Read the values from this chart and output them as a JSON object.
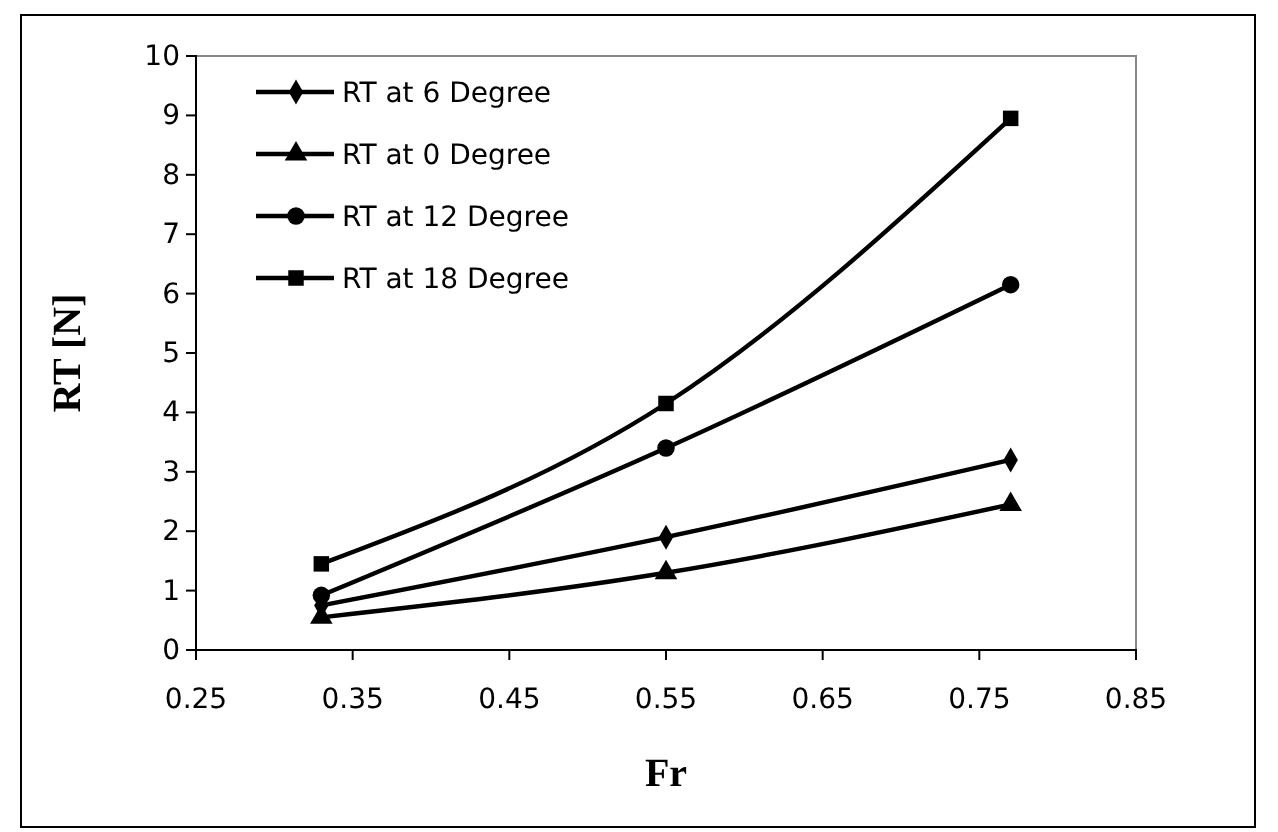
{
  "chart_data": {
    "type": "line",
    "xlabel": "Fr",
    "ylabel": "RT [N]",
    "xlim": [
      0.25,
      0.85
    ],
    "xticks": [
      {
        "value": 0.25,
        "label": "0.25"
      },
      {
        "value": 0.35,
        "label": "0.35"
      },
      {
        "value": 0.45,
        "label": "0.45"
      },
      {
        "value": 0.55,
        "label": "0.55"
      },
      {
        "value": 0.65,
        "label": "0.65"
      },
      {
        "value": 0.75,
        "label": "0.75"
      },
      {
        "value": 0.85,
        "label": "0.85"
      }
    ],
    "ylim": [
      0,
      10
    ],
    "yticks": [
      0,
      1,
      2,
      3,
      4,
      5,
      6,
      7,
      8,
      9,
      10
    ],
    "x": [
      0.33,
      0.55,
      0.77
    ],
    "legend": "top left",
    "grid": false,
    "series": [
      {
        "name": "RT at 6 Degree",
        "color": "#000000",
        "marker": "diamond",
        "values": [
          0.75,
          1.9,
          3.2
        ]
      },
      {
        "name": "RT at 0 Degree",
        "color": "#000000",
        "marker": "triangle",
        "values": [
          0.55,
          1.3,
          2.45
        ]
      },
      {
        "name": "RT at 12 Degree",
        "color": "#000000",
        "marker": "circle",
        "values": [
          0.92,
          3.4,
          6.15
        ]
      },
      {
        "name": "RT at 18 Degree",
        "color": "#000000",
        "marker": "square",
        "values": [
          1.45,
          4.15,
          8.95
        ]
      }
    ]
  }
}
